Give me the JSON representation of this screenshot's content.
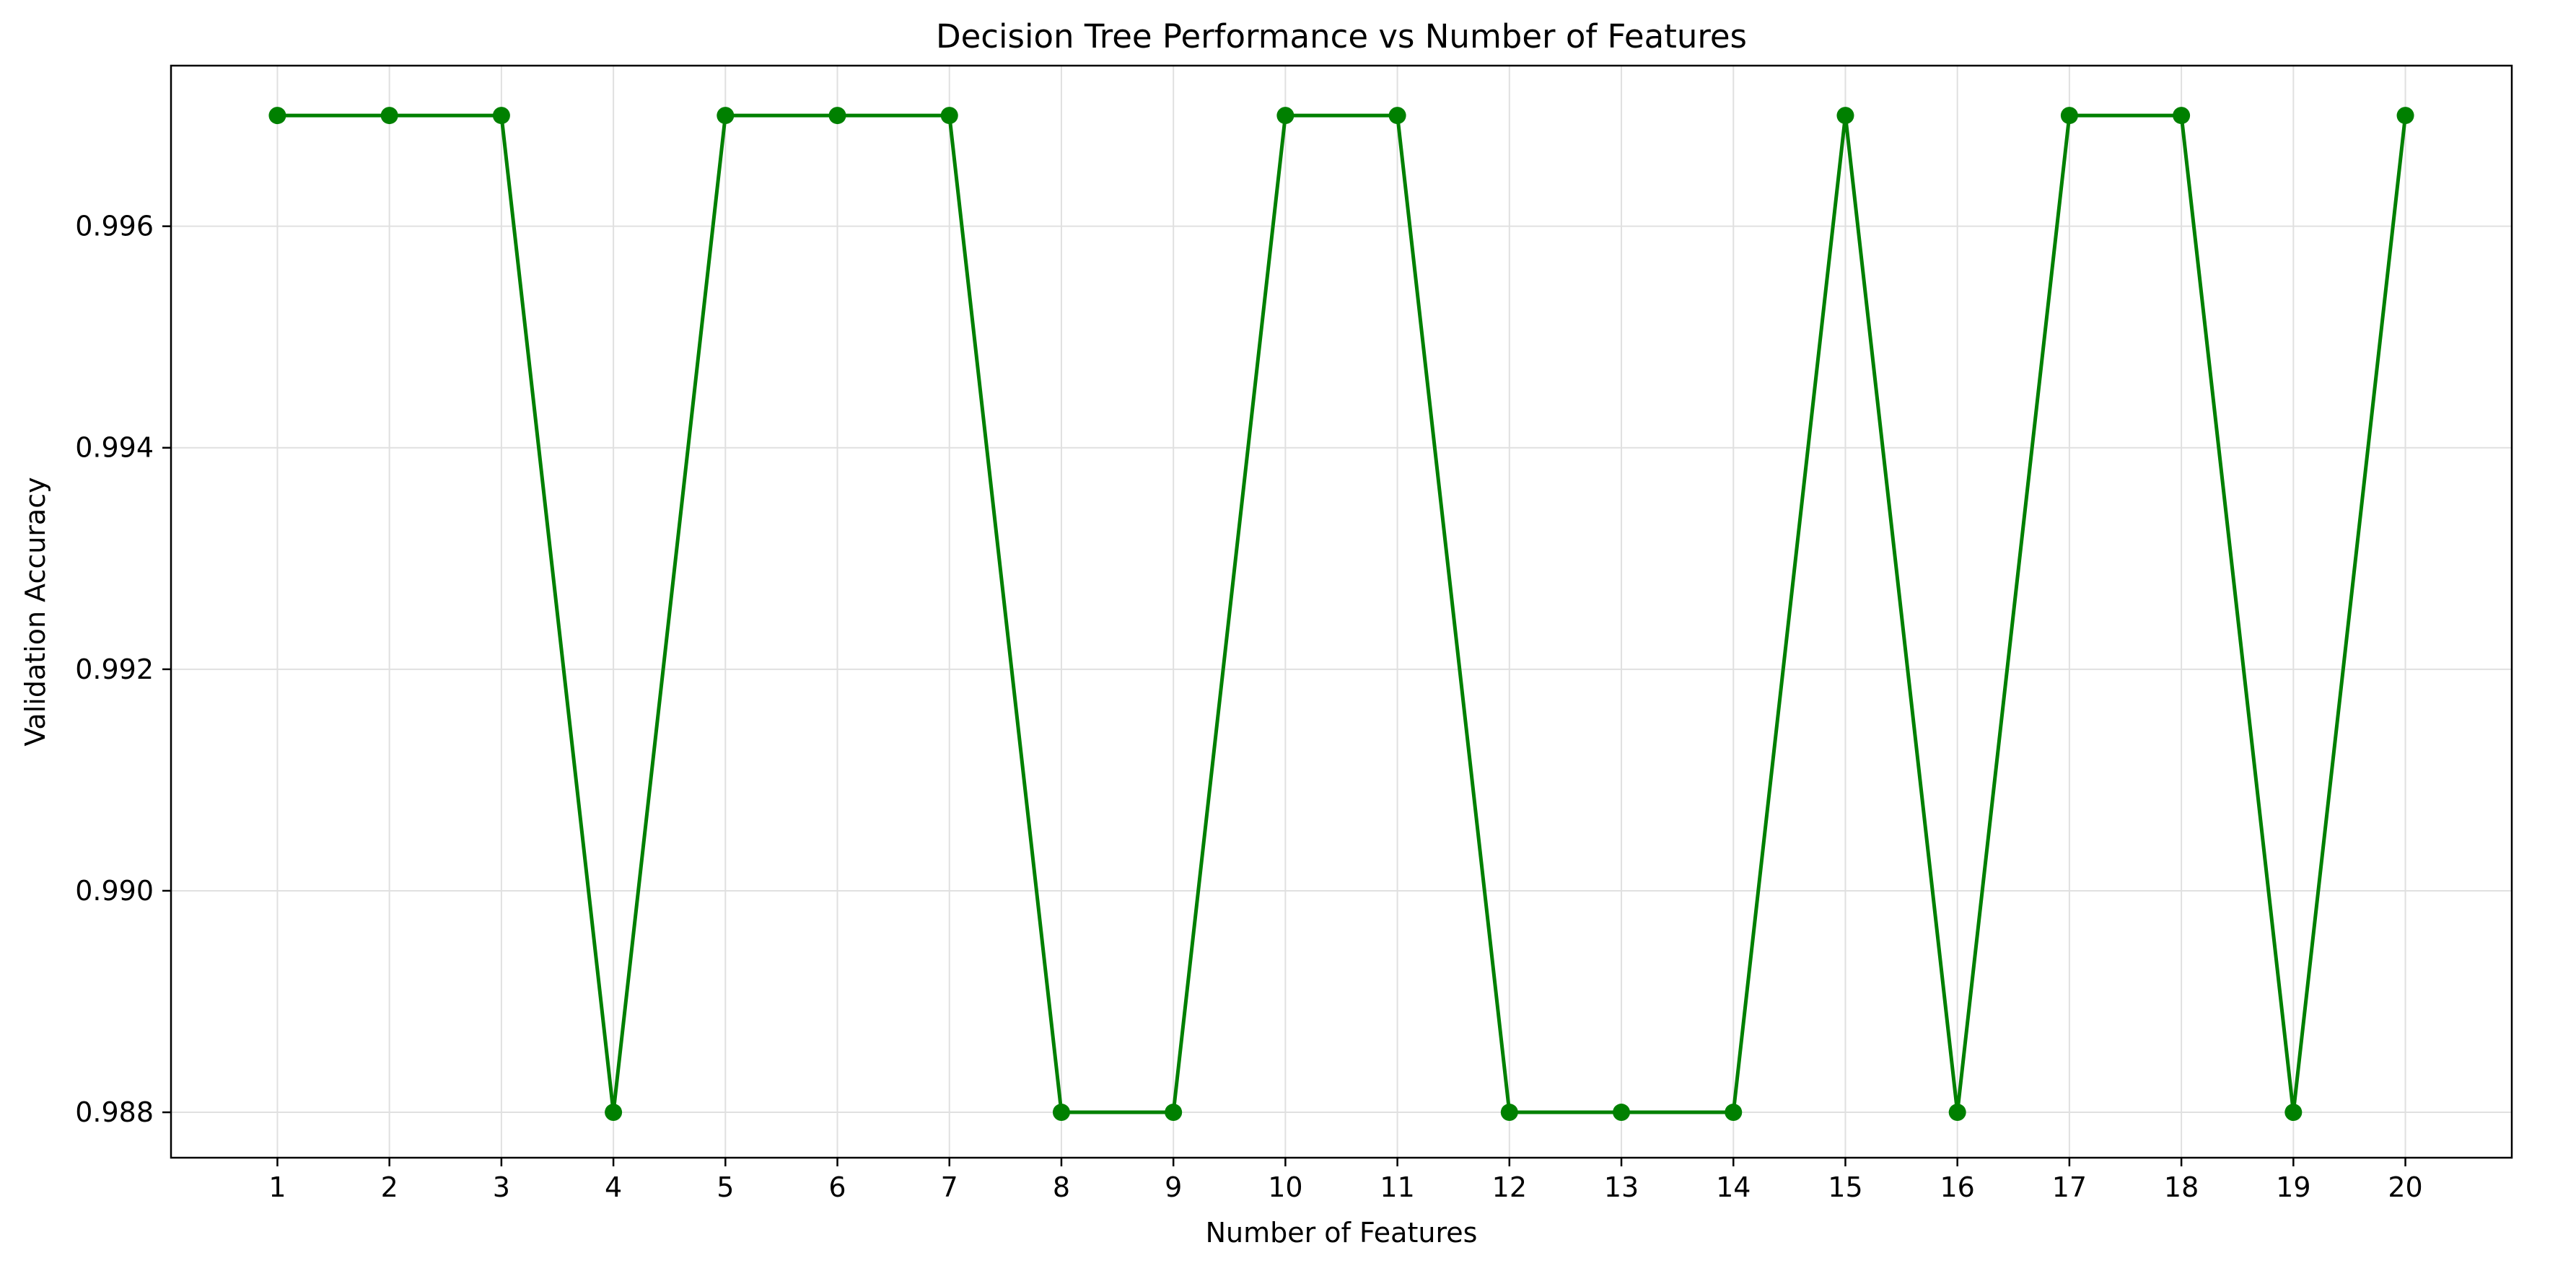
{
  "chart_data": {
    "type": "line",
    "title": "Decision Tree Performance vs Number of Features",
    "xlabel": "Number of Features",
    "ylabel": "Validation Accuracy",
    "x": [
      1,
      2,
      3,
      4,
      5,
      6,
      7,
      8,
      9,
      10,
      11,
      12,
      13,
      14,
      15,
      16,
      17,
      18,
      19,
      20
    ],
    "series": [
      {
        "color": "#008000",
        "marker": "circle",
        "values": [
          0.997,
          0.997,
          0.997,
          0.988,
          0.997,
          0.997,
          0.997,
          0.988,
          0.988,
          0.997,
          0.997,
          0.988,
          0.988,
          0.988,
          0.997,
          0.988,
          0.997,
          0.997,
          0.988,
          0.997
        ]
      }
    ],
    "xticks": [
      "1",
      "2",
      "3",
      "4",
      "5",
      "6",
      "7",
      "8",
      "9",
      "10",
      "11",
      "12",
      "13",
      "14",
      "15",
      "16",
      "17",
      "18",
      "19",
      "20"
    ],
    "yticks": [
      0.988,
      0.99,
      0.992,
      0.994,
      0.996
    ],
    "ytick_labels": [
      "0.988",
      "0.990",
      "0.992",
      "0.994",
      "0.996"
    ],
    "xlim": [
      0.05,
      20.95
    ],
    "ylim": [
      0.98759,
      0.99745
    ],
    "grid": true,
    "grid_color": "#e0e0e0",
    "axes_color": "#000000"
  }
}
